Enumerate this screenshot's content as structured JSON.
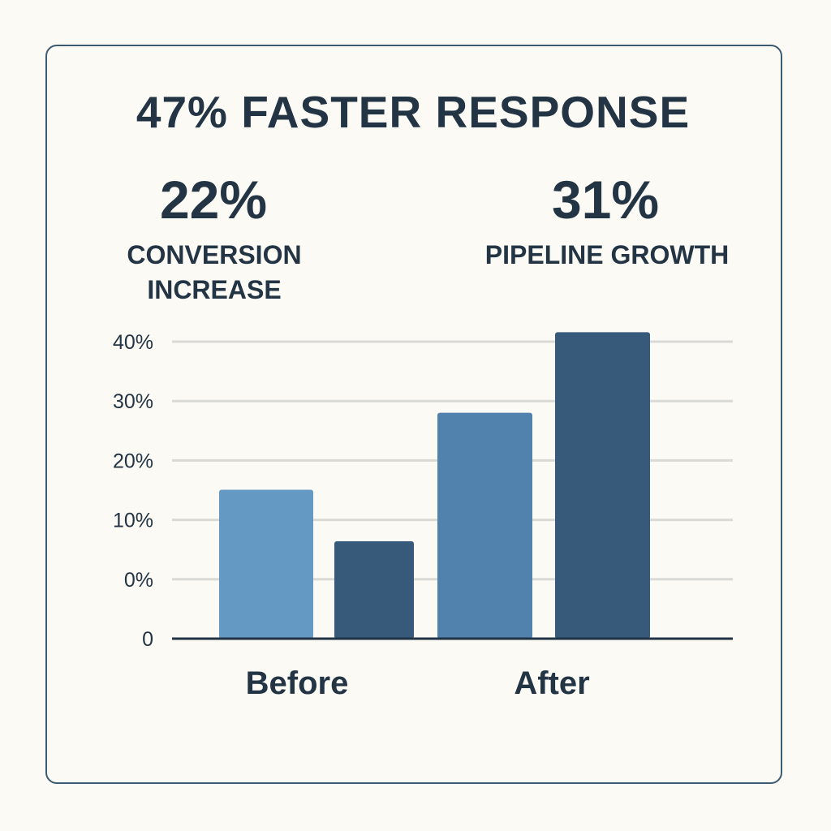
{
  "headline": "47% FASTER RESPONSE",
  "stats": [
    {
      "value": "22%",
      "label_lines": [
        "CONVERSION",
        "INCREASE"
      ]
    },
    {
      "value": "31%",
      "label_lines": [
        "PIPELINE GROWTH"
      ]
    }
  ],
  "chart_data": {
    "type": "bar",
    "title": "",
    "xlabel": "",
    "ylabel": "",
    "categories": [
      "Before",
      "After"
    ],
    "y_tick_labels": [
      "0",
      "0%",
      "10%",
      "20%",
      "30%",
      "40%"
    ],
    "ylim": [
      0,
      40
    ],
    "grid": true,
    "legend": "none",
    "series": [
      {
        "values": [
          15,
          28
        ],
        "colors": [
          "#6499c3",
          "#5182ad"
        ]
      },
      {
        "values": [
          6.3,
          41.6
        ],
        "colors": [
          "#375a7a",
          "#375a7a"
        ]
      }
    ]
  },
  "colors": {
    "background": "#fcfaf5",
    "text": "#233544",
    "border": "#3d5a73",
    "grid": "#d9d9d6",
    "axis": "#1f3344"
  }
}
